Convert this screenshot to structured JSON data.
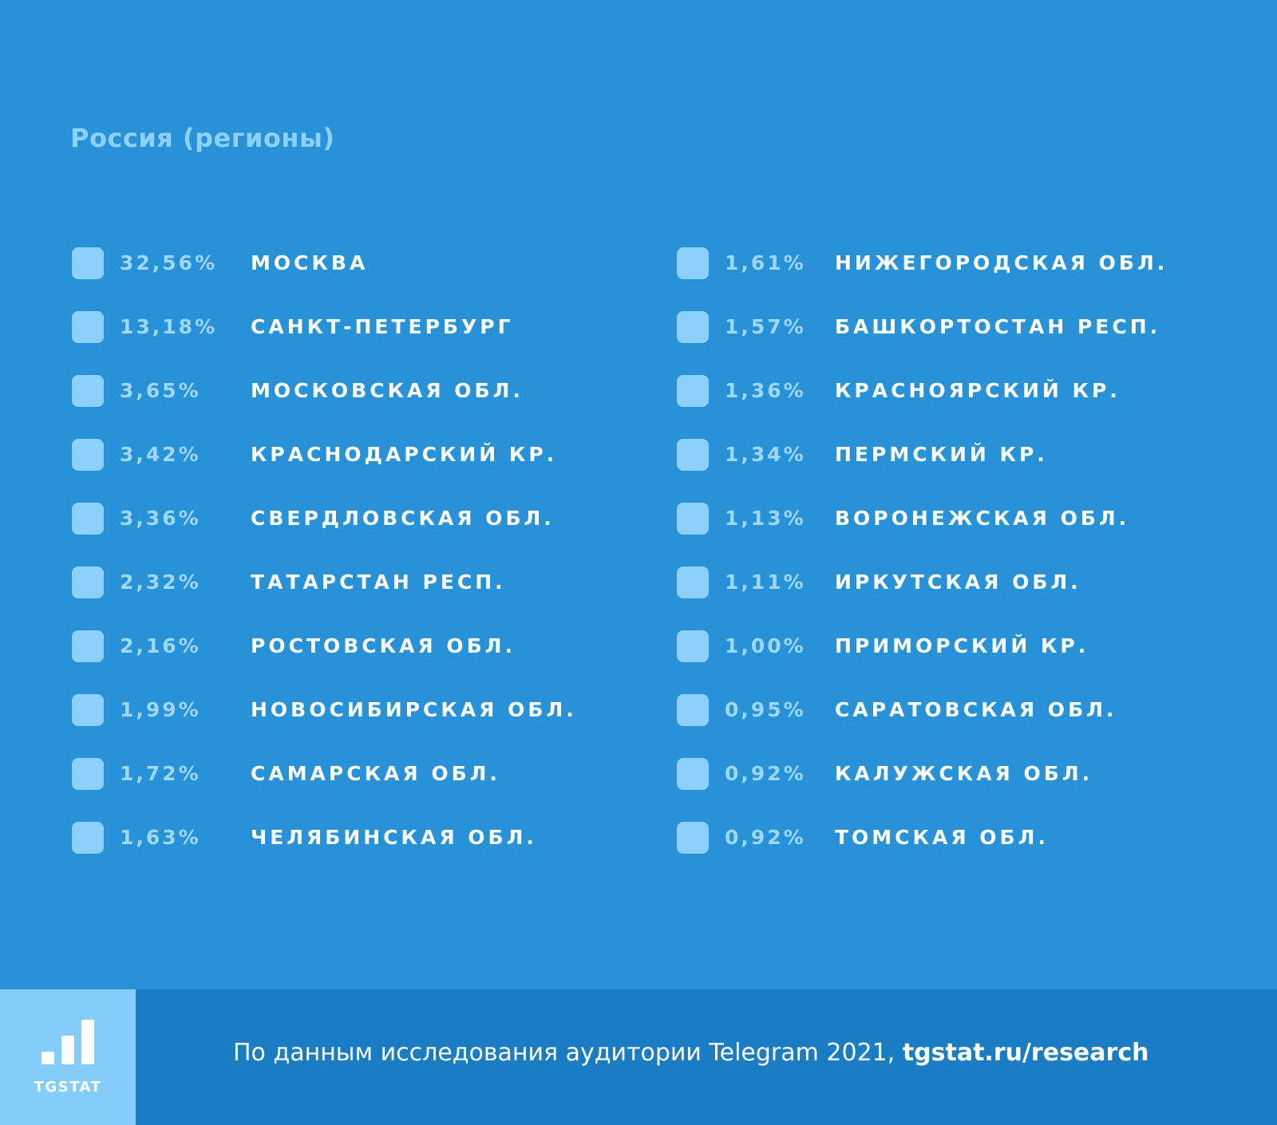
{
  "colors": {
    "background": "#2892d8",
    "swatch": "#8dd0fb",
    "footer": "#1a7cc2",
    "logo_bg": "#84cdfb"
  },
  "chart_data": {
    "type": "table",
    "title": "Россия (регионы)",
    "rows": [
      {
        "percent": "32,56%",
        "region": "МОСКВА",
        "value": 32.56
      },
      {
        "percent": "13,18%",
        "region": "САНКТ-ПЕТЕРБУРГ",
        "value": 13.18
      },
      {
        "percent": "3,65%",
        "region": "МОСКОВСКАЯ ОБЛ.",
        "value": 3.65
      },
      {
        "percent": "3,42%",
        "region": "КРАСНОДАРСКИЙ КР.",
        "value": 3.42
      },
      {
        "percent": "3,36%",
        "region": "СВЕРДЛОВСКАЯ ОБЛ.",
        "value": 3.36
      },
      {
        "percent": "2,32%",
        "region": "ТАТАРСТАН РЕСП.",
        "value": 2.32
      },
      {
        "percent": "2,16%",
        "region": "РОСТОВСКАЯ ОБЛ.",
        "value": 2.16
      },
      {
        "percent": "1,99%",
        "region": "НОВОСИБИРСКАЯ ОБЛ.",
        "value": 1.99
      },
      {
        "percent": "1,72%",
        "region": "САМАРСКАЯ ОБЛ.",
        "value": 1.72
      },
      {
        "percent": "1,63%",
        "region": "ЧЕЛЯБИНСКАЯ ОБЛ.",
        "value": 1.63
      },
      {
        "percent": "1,61%",
        "region": "НИЖЕГОРОДСКАЯ ОБЛ.",
        "value": 1.61
      },
      {
        "percent": "1,57%",
        "region": "БАШКОРТОСТАН РЕСП.",
        "value": 1.57
      },
      {
        "percent": "1,36%",
        "region": "КРАСНОЯРСКИЙ КР.",
        "value": 1.36
      },
      {
        "percent": "1,34%",
        "region": "ПЕРМСКИЙ КР.",
        "value": 1.34
      },
      {
        "percent": "1,13%",
        "region": "ВОРОНЕЖСКАЯ ОБЛ.",
        "value": 1.13
      },
      {
        "percent": "1,11%",
        "region": "ИРКУТСКАЯ ОБЛ.",
        "value": 1.11
      },
      {
        "percent": "1,00%",
        "region": "ПРИМОРСКИЙ КР.",
        "value": 1.0
      },
      {
        "percent": "0,95%",
        "region": "САРАТОВСКАЯ ОБЛ.",
        "value": 0.95
      },
      {
        "percent": "0,92%",
        "region": "КАЛУЖСКАЯ ОБЛ.",
        "value": 0.92
      },
      {
        "percent": "0,92%",
        "region": "ТОМСКАЯ ОБЛ.",
        "value": 0.92
      }
    ]
  },
  "footer": {
    "logo_label": "TGSTAT",
    "source_text": "По данным исследования аудитории Telegram 2021, ",
    "source_link": "tgstat.ru/research"
  }
}
